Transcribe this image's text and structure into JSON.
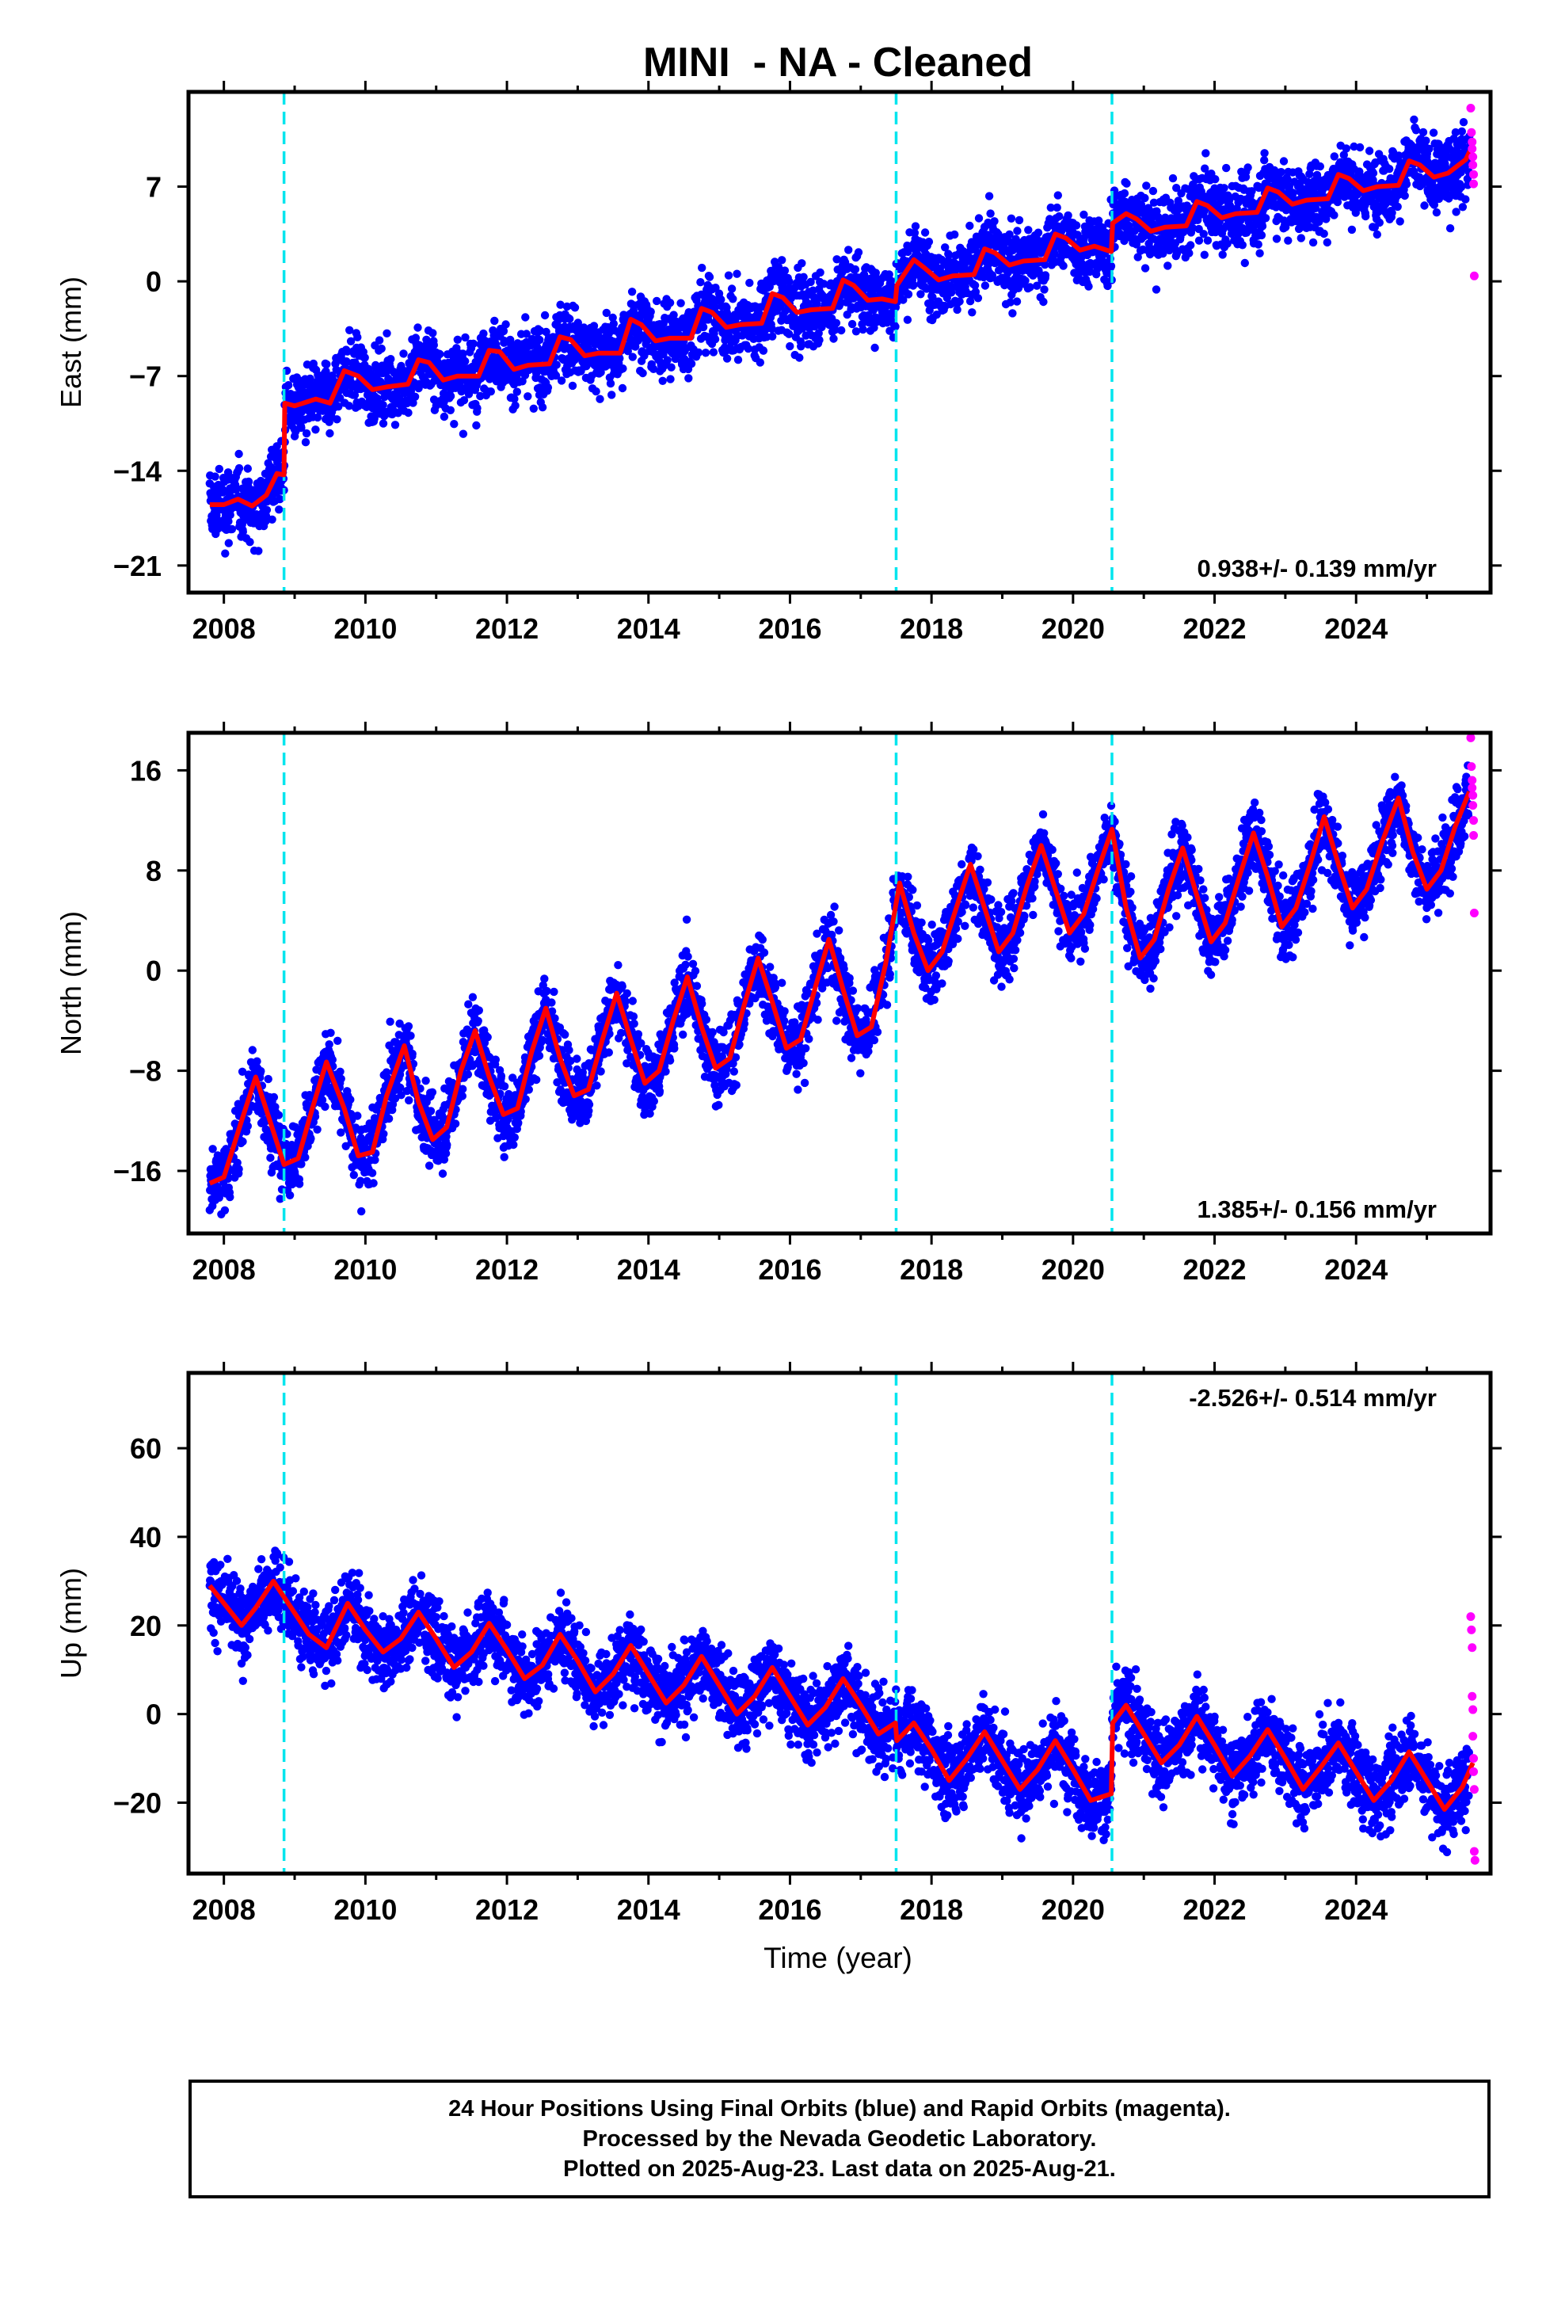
{
  "title": "MINI  - NA - Cleaned",
  "xlabel": "Time (year)",
  "footer": {
    "line1": "24 Hour Positions Using Final Orbits (blue) and Rapid Orbits (magenta).",
    "line2": "Processed by the Nevada Geodetic Laboratory.",
    "line3": "Plotted on 2025-Aug-23. Last data on 2025-Aug-21."
  },
  "colors": {
    "final_orbits": "#0000ff",
    "rapid_orbits": "#ff00ff",
    "model": "#ff0000",
    "equipment_change": "#00e5ee"
  },
  "chart_data": [
    {
      "type": "scatter",
      "component": "east",
      "ylabel": "East (mm)",
      "rate_label": "0.938+/- 0.139 mm/yr",
      "xlim": [
        2007.5,
        2025.9
      ],
      "ylim": [
        -23,
        14
      ],
      "xticks": [
        2008,
        2010,
        2012,
        2014,
        2016,
        2018,
        2020,
        2022,
        2024
      ],
      "yticks": [
        -21,
        -14,
        -7,
        0,
        7
      ],
      "events": [
        2008.85,
        2017.5,
        2020.55
      ],
      "model_points": [
        [
          2007.8,
          -16.5
        ],
        [
          2008.0,
          -16.5
        ],
        [
          2008.2,
          -16.1
        ],
        [
          2008.4,
          -16.6
        ],
        [
          2008.6,
          -15.8
        ],
        [
          2008.75,
          -14.2
        ],
        [
          2008.85,
          -14.3
        ],
        [
          2008.86,
          -9.0
        ],
        [
          2009.0,
          -9.2
        ],
        [
          2009.3,
          -8.7
        ],
        [
          2009.5,
          -9.0
        ],
        [
          2009.7,
          -6.6
        ],
        [
          2009.9,
          -7.0
        ],
        [
          2010.1,
          -8.0
        ],
        [
          2010.3,
          -7.8
        ],
        [
          2010.6,
          -7.6
        ],
        [
          2010.75,
          -5.8
        ],
        [
          2010.9,
          -6.0
        ],
        [
          2011.1,
          -7.3
        ],
        [
          2011.3,
          -7.0
        ],
        [
          2011.6,
          -7.0
        ],
        [
          2011.75,
          -5.1
        ],
        [
          2011.9,
          -5.2
        ],
        [
          2012.1,
          -6.5
        ],
        [
          2012.3,
          -6.2
        ],
        [
          2012.6,
          -6.1
        ],
        [
          2012.75,
          -4.1
        ],
        [
          2012.9,
          -4.3
        ],
        [
          2013.1,
          -5.5
        ],
        [
          2013.3,
          -5.3
        ],
        [
          2013.6,
          -5.3
        ],
        [
          2013.75,
          -2.8
        ],
        [
          2013.9,
          -3.2
        ],
        [
          2014.1,
          -4.4
        ],
        [
          2014.3,
          -4.2
        ],
        [
          2014.6,
          -4.2
        ],
        [
          2014.75,
          -2.0
        ],
        [
          2014.9,
          -2.3
        ],
        [
          2015.1,
          -3.4
        ],
        [
          2015.3,
          -3.2
        ],
        [
          2015.6,
          -3.1
        ],
        [
          2015.75,
          -0.9
        ],
        [
          2015.9,
          -1.2
        ],
        [
          2016.1,
          -2.3
        ],
        [
          2016.3,
          -2.1
        ],
        [
          2016.6,
          -2.0
        ],
        [
          2016.75,
          0.1
        ],
        [
          2016.9,
          -0.3
        ],
        [
          2017.1,
          -1.4
        ],
        [
          2017.3,
          -1.3
        ],
        [
          2017.49,
          -1.5
        ],
        [
          2017.51,
          -0.3
        ],
        [
          2017.75,
          1.6
        ],
        [
          2017.9,
          1.0
        ],
        [
          2018.1,
          0.1
        ],
        [
          2018.3,
          0.4
        ],
        [
          2018.6,
          0.5
        ],
        [
          2018.75,
          2.4
        ],
        [
          2018.9,
          2.1
        ],
        [
          2019.1,
          1.2
        ],
        [
          2019.3,
          1.5
        ],
        [
          2019.6,
          1.6
        ],
        [
          2019.75,
          3.5
        ],
        [
          2019.9,
          3.2
        ],
        [
          2020.1,
          2.3
        ],
        [
          2020.3,
          2.6
        ],
        [
          2020.54,
          2.2
        ],
        [
          2020.56,
          4.3
        ],
        [
          2020.75,
          5.0
        ],
        [
          2020.9,
          4.6
        ],
        [
          2021.1,
          3.7
        ],
        [
          2021.3,
          4.0
        ],
        [
          2021.6,
          4.1
        ],
        [
          2021.75,
          5.9
        ],
        [
          2021.9,
          5.6
        ],
        [
          2022.1,
          4.7
        ],
        [
          2022.3,
          5.0
        ],
        [
          2022.6,
          5.1
        ],
        [
          2022.75,
          6.9
        ],
        [
          2022.9,
          6.6
        ],
        [
          2023.1,
          5.7
        ],
        [
          2023.3,
          6.0
        ],
        [
          2023.6,
          6.1
        ],
        [
          2023.75,
          7.9
        ],
        [
          2023.9,
          7.6
        ],
        [
          2024.1,
          6.7
        ],
        [
          2024.3,
          7.0
        ],
        [
          2024.6,
          7.1
        ],
        [
          2024.75,
          8.9
        ],
        [
          2024.9,
          8.6
        ],
        [
          2025.1,
          7.7
        ],
        [
          2025.3,
          8.0
        ],
        [
          2025.55,
          9.0
        ],
        [
          2025.65,
          10.1
        ]
      ],
      "rapid_points": [
        [
          2025.62,
          12.8
        ],
        [
          2025.63,
          11.0
        ],
        [
          2025.64,
          10.3
        ],
        [
          2025.64,
          9.8
        ],
        [
          2025.65,
          9.2
        ],
        [
          2025.65,
          8.6
        ],
        [
          2025.66,
          7.9
        ],
        [
          2025.66,
          7.2
        ],
        [
          2025.67,
          0.4
        ]
      ]
    },
    {
      "type": "scatter",
      "component": "north",
      "ylabel": "North (mm)",
      "rate_label": "1.385+/- 0.156 mm/yr",
      "xlim": [
        2007.5,
        2025.9
      ],
      "ylim": [
        -21,
        19
      ],
      "xticks": [
        2008,
        2010,
        2012,
        2014,
        2016,
        2018,
        2020,
        2022,
        2024
      ],
      "yticks": [
        -16,
        -8,
        0,
        8,
        16
      ],
      "events": [
        2008.85,
        2017.5,
        2020.55
      ],
      "model_points": [
        [
          2007.8,
          -17.0
        ],
        [
          2008.0,
          -16.5
        ],
        [
          2008.25,
          -12.0
        ],
        [
          2008.45,
          -8.5
        ],
        [
          2008.65,
          -12.0
        ],
        [
          2008.85,
          -15.5
        ],
        [
          2009.05,
          -15.0
        ],
        [
          2009.25,
          -11.0
        ],
        [
          2009.45,
          -7.3
        ],
        [
          2009.7,
          -11.0
        ],
        [
          2009.9,
          -14.8
        ],
        [
          2010.1,
          -14.5
        ],
        [
          2010.3,
          -10.0
        ],
        [
          2010.55,
          -6.0
        ],
        [
          2010.75,
          -10.5
        ],
        [
          2010.95,
          -13.5
        ],
        [
          2011.15,
          -12.5
        ],
        [
          2011.35,
          -8.0
        ],
        [
          2011.55,
          -4.8
        ],
        [
          2011.75,
          -8.5
        ],
        [
          2011.95,
          -11.5
        ],
        [
          2012.15,
          -11.0
        ],
        [
          2012.35,
          -6.5
        ],
        [
          2012.55,
          -3.0
        ],
        [
          2012.75,
          -7.0
        ],
        [
          2012.95,
          -10.0
        ],
        [
          2013.15,
          -9.5
        ],
        [
          2013.35,
          -5.5
        ],
        [
          2013.55,
          -1.8
        ],
        [
          2013.75,
          -5.5
        ],
        [
          2013.95,
          -9.0
        ],
        [
          2014.15,
          -8.0
        ],
        [
          2014.35,
          -4.0
        ],
        [
          2014.55,
          -0.5
        ],
        [
          2014.75,
          -4.5
        ],
        [
          2014.95,
          -7.8
        ],
        [
          2015.15,
          -7.0
        ],
        [
          2015.35,
          -2.8
        ],
        [
          2015.55,
          1.0
        ],
        [
          2015.75,
          -2.5
        ],
        [
          2015.95,
          -6.2
        ],
        [
          2016.15,
          -5.5
        ],
        [
          2016.35,
          -1.5
        ],
        [
          2016.55,
          2.5
        ],
        [
          2016.75,
          -1.5
        ],
        [
          2016.95,
          -5.2
        ],
        [
          2017.15,
          -4.5
        ],
        [
          2017.35,
          0.5
        ],
        [
          2017.55,
          7.0
        ],
        [
          2017.75,
          3.0
        ],
        [
          2017.95,
          0.0
        ],
        [
          2018.15,
          1.5
        ],
        [
          2018.35,
          5.0
        ],
        [
          2018.55,
          8.5
        ],
        [
          2018.75,
          5.0
        ],
        [
          2018.95,
          1.5
        ],
        [
          2019.15,
          3.0
        ],
        [
          2019.35,
          6.8
        ],
        [
          2019.55,
          10.0
        ],
        [
          2019.75,
          6.5
        ],
        [
          2019.95,
          3.0
        ],
        [
          2020.15,
          4.5
        ],
        [
          2020.35,
          8.0
        ],
        [
          2020.55,
          11.3
        ],
        [
          2020.75,
          5.0
        ],
        [
          2020.95,
          1.0
        ],
        [
          2021.15,
          2.5
        ],
        [
          2021.35,
          6.5
        ],
        [
          2021.55,
          9.8
        ],
        [
          2021.75,
          6.0
        ],
        [
          2021.95,
          2.3
        ],
        [
          2022.15,
          3.8
        ],
        [
          2022.35,
          7.5
        ],
        [
          2022.55,
          11.0
        ],
        [
          2022.75,
          7.5
        ],
        [
          2022.95,
          3.5
        ],
        [
          2023.15,
          5.0
        ],
        [
          2023.35,
          8.5
        ],
        [
          2023.55,
          12.3
        ],
        [
          2023.75,
          8.5
        ],
        [
          2023.95,
          5.0
        ],
        [
          2024.15,
          6.5
        ],
        [
          2024.35,
          10.0
        ],
        [
          2024.6,
          13.8
        ],
        [
          2024.8,
          9.5
        ],
        [
          2025.0,
          6.5
        ],
        [
          2025.2,
          8.0
        ],
        [
          2025.4,
          11.5
        ],
        [
          2025.6,
          14.3
        ]
      ],
      "rapid_points": [
        [
          2025.62,
          18.6
        ],
        [
          2025.63,
          16.3
        ],
        [
          2025.64,
          15.2
        ],
        [
          2025.64,
          14.6
        ],
        [
          2025.65,
          14.0
        ],
        [
          2025.65,
          13.2
        ],
        [
          2025.66,
          12.0
        ],
        [
          2025.66,
          10.8
        ],
        [
          2025.67,
          4.6
        ]
      ]
    },
    {
      "type": "scatter",
      "component": "up",
      "ylabel": "Up (mm)",
      "rate_label": "-2.526+/- 0.514 mm/yr",
      "xlim": [
        2007.5,
        2025.9
      ],
      "ylim": [
        -36,
        77
      ],
      "xticks": [
        2008,
        2010,
        2012,
        2014,
        2016,
        2018,
        2020,
        2022,
        2024
      ],
      "yticks": [
        -20,
        0,
        20,
        40,
        60
      ],
      "events": [
        2008.85,
        2017.5,
        2020.55
      ],
      "model_points": [
        [
          2007.8,
          29.0
        ],
        [
          2008.0,
          25.0
        ],
        [
          2008.25,
          20.0
        ],
        [
          2008.45,
          24.0
        ],
        [
          2008.7,
          30.0
        ],
        [
          2008.95,
          24.0
        ],
        [
          2009.2,
          18.0
        ],
        [
          2009.45,
          15.0
        ],
        [
          2009.75,
          25.0
        ],
        [
          2010.0,
          19.0
        ],
        [
          2010.25,
          14.0
        ],
        [
          2010.5,
          17.0
        ],
        [
          2010.75,
          23.0
        ],
        [
          2011.0,
          17.0
        ],
        [
          2011.25,
          10.5
        ],
        [
          2011.5,
          14.0
        ],
        [
          2011.75,
          20.5
        ],
        [
          2012.0,
          14.5
        ],
        [
          2012.25,
          8.0
        ],
        [
          2012.5,
          11.0
        ],
        [
          2012.75,
          18.0
        ],
        [
          2013.0,
          12.0
        ],
        [
          2013.25,
          5.0
        ],
        [
          2013.5,
          9.0
        ],
        [
          2013.75,
          15.5
        ],
        [
          2014.0,
          9.0
        ],
        [
          2014.25,
          2.5
        ],
        [
          2014.5,
          6.5
        ],
        [
          2014.75,
          13.0
        ],
        [
          2015.0,
          6.5
        ],
        [
          2015.25,
          0.0
        ],
        [
          2015.5,
          4.0
        ],
        [
          2015.75,
          10.5
        ],
        [
          2016.0,
          4.0
        ],
        [
          2016.25,
          -2.5
        ],
        [
          2016.5,
          1.5
        ],
        [
          2016.75,
          8.0
        ],
        [
          2017.0,
          2.0
        ],
        [
          2017.25,
          -4.5
        ],
        [
          2017.49,
          -2.0
        ],
        [
          2017.51,
          -6.0
        ],
        [
          2017.75,
          -2.0
        ],
        [
          2018.0,
          -8.0
        ],
        [
          2018.25,
          -15.0
        ],
        [
          2018.5,
          -10.0
        ],
        [
          2018.75,
          -4.0
        ],
        [
          2019.0,
          -10.5
        ],
        [
          2019.25,
          -17.0
        ],
        [
          2019.5,
          -12.5
        ],
        [
          2019.75,
          -6.0
        ],
        [
          2020.0,
          -12.5
        ],
        [
          2020.25,
          -19.5
        ],
        [
          2020.54,
          -18.0
        ],
        [
          2020.56,
          -2.0
        ],
        [
          2020.75,
          2.0
        ],
        [
          2021.0,
          -4.5
        ],
        [
          2021.25,
          -11.0
        ],
        [
          2021.5,
          -7.0
        ],
        [
          2021.75,
          -0.5
        ],
        [
          2022.0,
          -7.0
        ],
        [
          2022.25,
          -14.0
        ],
        [
          2022.5,
          -9.5
        ],
        [
          2022.75,
          -3.5
        ],
        [
          2023.0,
          -10.0
        ],
        [
          2023.25,
          -17.0
        ],
        [
          2023.5,
          -12.0
        ],
        [
          2023.75,
          -6.5
        ],
        [
          2024.0,
          -13.0
        ],
        [
          2024.25,
          -19.5
        ],
        [
          2024.5,
          -15.0
        ],
        [
          2024.75,
          -8.5
        ],
        [
          2025.0,
          -15.0
        ],
        [
          2025.25,
          -21.5
        ],
        [
          2025.5,
          -16.5
        ],
        [
          2025.65,
          -11.0
        ]
      ],
      "rapid_points": [
        [
          2025.62,
          22.0
        ],
        [
          2025.63,
          19.0
        ],
        [
          2025.64,
          15.0
        ],
        [
          2025.64,
          4.0
        ],
        [
          2025.65,
          1.0
        ],
        [
          2025.65,
          -5.0
        ],
        [
          2025.66,
          -10.0
        ],
        [
          2025.66,
          -13.0
        ],
        [
          2025.67,
          -17.0
        ],
        [
          2025.67,
          -31.0
        ],
        [
          2025.68,
          -33.0
        ]
      ]
    }
  ]
}
